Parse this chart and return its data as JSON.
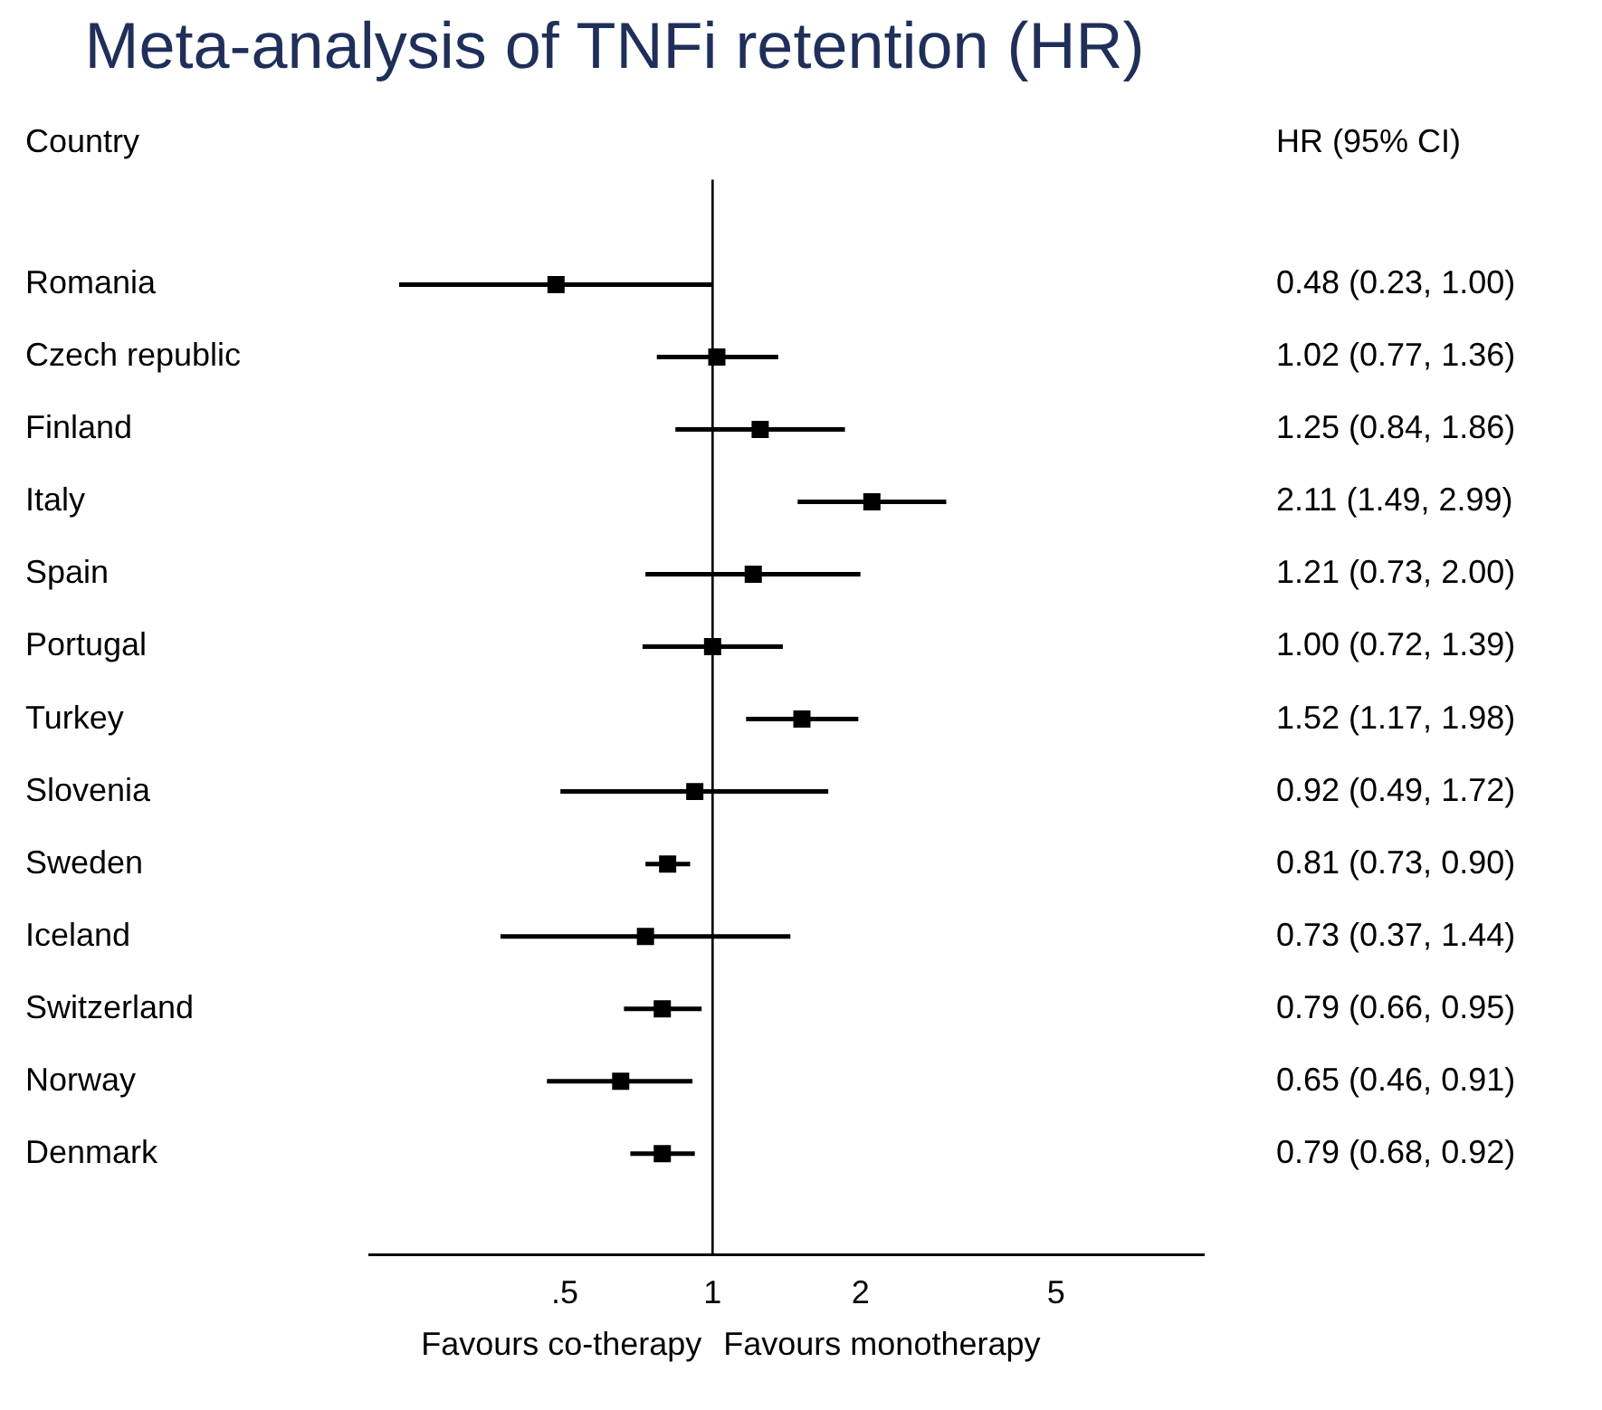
{
  "chart_data": {
    "type": "scatter",
    "title": "Meta-analysis of TNFi retention (HR)",
    "categories": [
      "Romania",
      "Czech republic",
      "Finland",
      "Italy",
      "Spain",
      "Portugal",
      "Turkey",
      "Slovenia",
      "Sweden",
      "Iceland",
      "Switzerland",
      "Norway",
      "Denmark"
    ],
    "values": [
      0.48,
      1.02,
      1.25,
      2.11,
      1.21,
      1.0,
      1.52,
      0.92,
      0.81,
      0.73,
      0.79,
      0.65,
      0.79
    ],
    "errors": [
      [
        0.23,
        1.0
      ],
      [
        0.77,
        1.36
      ],
      [
        0.84,
        1.86
      ],
      [
        1.49,
        2.99
      ],
      [
        0.73,
        2.0
      ],
      [
        0.72,
        1.39
      ],
      [
        1.17,
        1.98
      ],
      [
        0.49,
        1.72
      ],
      [
        0.73,
        0.9
      ],
      [
        0.37,
        1.44
      ],
      [
        0.66,
        0.95
      ],
      [
        0.46,
        0.91
      ],
      [
        0.68,
        0.92
      ]
    ],
    "value_labels": [
      "0.48 (0.23, 1.00)",
      "1.02 (0.77, 1.36)",
      "1.25 (0.84, 1.86)",
      "2.11 (1.49, 2.99)",
      "1.21 (0.73, 2.00)",
      "1.00 (0.72, 1.39)",
      "1.52 (1.17, 1.98)",
      "0.92 (0.49, 1.72)",
      "0.81 (0.73, 0.90)",
      "0.73 (0.37, 1.44)",
      "0.79 (0.66, 0.95)",
      "0.65 (0.46, 0.91)",
      "0.79 (0.68, 0.92)"
    ],
    "orientation": "horizontal",
    "color": "#000000",
    "marker": "square",
    "log": "x",
    "xlim": [
      0.2,
      10
    ],
    "xticks": [
      {
        "value": 0.5,
        "label": ".5"
      },
      1,
      2,
      5
    ],
    "ref_lines": [
      {
        "axis": "x",
        "value": 1
      }
    ],
    "annotations": [
      "Country",
      "HR (95% CI)",
      "Favours co-therapy",
      "Favours monotherapy"
    ],
    "grid": false,
    "legend": false
  }
}
